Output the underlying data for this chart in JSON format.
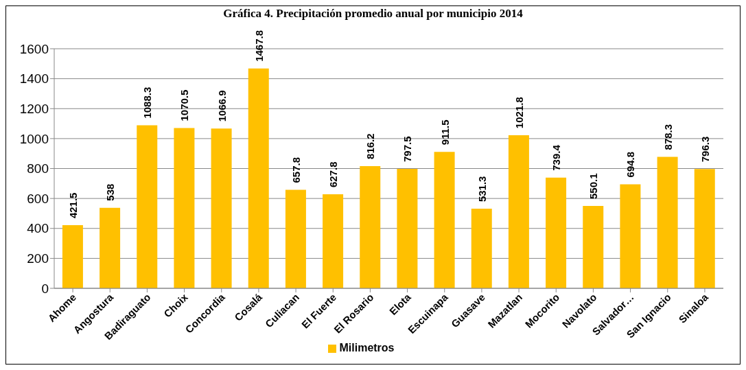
{
  "chart_data": {
    "type": "bar",
    "title": "Gráfica 4. Precipitación promedio anual por municipio 2014",
    "categories": [
      "Ahome",
      "Angostura",
      "Badiraguato",
      "Choix",
      "Concordia",
      "Cosalá",
      "Culiacan",
      "El Fuerte",
      "El Rosario",
      "Elota",
      "Escuinapa",
      "Guasave",
      "Mazatlan",
      "Mocorito",
      "Navolato",
      "Salvador…",
      "San Ignacio",
      "Sinaloa"
    ],
    "series": [
      {
        "name": "Milimetros",
        "color": "#ffc000",
        "values": [
          421.5,
          538,
          1088.3,
          1070.5,
          1066.9,
          1467.8,
          657.8,
          627.8,
          816.2,
          797.5,
          911.5,
          531.3,
          1021.8,
          739.4,
          550.1,
          694.8,
          878.3,
          796.3
        ]
      }
    ],
    "ylim": [
      0,
      1600
    ],
    "yticks": [
      0,
      200,
      400,
      600,
      800,
      1000,
      1200,
      1400,
      1600
    ],
    "grid": "y",
    "legend": "bottom",
    "data_labels": true
  }
}
